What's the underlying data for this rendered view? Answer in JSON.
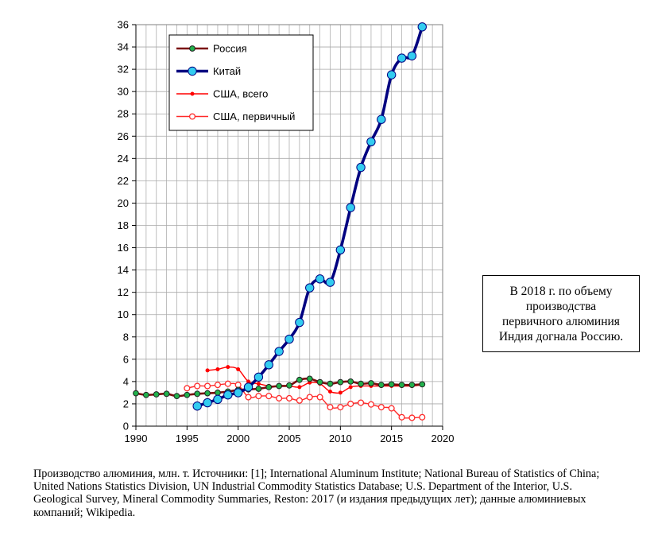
{
  "chart_data": {
    "type": "line",
    "title": "",
    "xlabel": "",
    "ylabel": "",
    "xlim": [
      1990,
      2020
    ],
    "ylim": [
      0,
      36
    ],
    "x_ticks": [
      1990,
      1995,
      2000,
      2005,
      2010,
      2015,
      2020
    ],
    "y_ticks": [
      0,
      2,
      4,
      6,
      8,
      10,
      12,
      14,
      16,
      18,
      20,
      22,
      24,
      26,
      28,
      30,
      32,
      34,
      36
    ],
    "grid": true,
    "legend_position": "top-left",
    "series": [
      {
        "name": "Россия",
        "color": "#7a0c0c",
        "marker_color": "#22b14c",
        "style": "thick",
        "x": [
          1990,
          1991,
          1992,
          1993,
          1994,
          1995,
          1996,
          1997,
          1998,
          1999,
          2000,
          2001,
          2002,
          2003,
          2004,
          2005,
          2006,
          2007,
          2008,
          2009,
          2010,
          2011,
          2012,
          2013,
          2014,
          2015,
          2016,
          2017,
          2018
        ],
        "values": [
          2.95,
          2.8,
          2.85,
          2.9,
          2.7,
          2.8,
          2.9,
          2.95,
          3.0,
          3.1,
          3.25,
          3.3,
          3.35,
          3.5,
          3.6,
          3.65,
          4.15,
          4.25,
          3.95,
          3.8,
          3.95,
          4.0,
          3.8,
          3.85,
          3.7,
          3.75,
          3.7,
          3.7,
          3.75
        ]
      },
      {
        "name": "Китай",
        "color": "#000080",
        "marker_color": "#33ccf0",
        "style": "thick",
        "x": [
          1996,
          1997,
          1998,
          1999,
          2000,
          2001,
          2002,
          2003,
          2004,
          2005,
          2006,
          2007,
          2008,
          2009,
          2010,
          2011,
          2012,
          2013,
          2014,
          2015,
          2016,
          2017,
          2018
        ],
        "values": [
          1.8,
          2.1,
          2.4,
          2.8,
          3.0,
          3.5,
          4.4,
          5.5,
          6.7,
          7.8,
          9.3,
          12.4,
          13.2,
          12.9,
          15.8,
          19.6,
          23.2,
          25.5,
          27.5,
          31.5,
          33.0,
          33.2,
          35.8
        ]
      },
      {
        "name": "США, всего",
        "color": "#ff0000",
        "marker_color": "#ff0000",
        "style": "thin-small",
        "x": [
          1997,
          1998,
          1999,
          2000,
          2001,
          2002,
          2003,
          2004,
          2005,
          2006,
          2007,
          2008,
          2009,
          2010,
          2011,
          2012,
          2013,
          2014,
          2015,
          2016,
          2017,
          2018
        ],
        "values": [
          5.0,
          5.1,
          5.3,
          5.1,
          4.0,
          3.8,
          3.6,
          3.6,
          3.6,
          3.5,
          3.9,
          3.8,
          3.1,
          3.0,
          3.5,
          3.6,
          3.6,
          3.6,
          3.6,
          3.6,
          3.6,
          3.7
        ]
      },
      {
        "name": "США, первичный",
        "color": "#ff2a2a",
        "marker_color": "#ffffff",
        "style": "thin-open",
        "x": [
          1995,
          1996,
          1997,
          1998,
          1999,
          2000,
          2001,
          2002,
          2003,
          2004,
          2005,
          2006,
          2007,
          2008,
          2009,
          2010,
          2011,
          2012,
          2013,
          2014,
          2015,
          2016,
          2017,
          2018
        ],
        "values": [
          3.4,
          3.6,
          3.6,
          3.7,
          3.8,
          3.7,
          2.6,
          2.7,
          2.7,
          2.5,
          2.5,
          2.3,
          2.6,
          2.6,
          1.7,
          1.7,
          2.0,
          2.1,
          1.95,
          1.7,
          1.6,
          0.8,
          0.75,
          0.8
        ]
      }
    ]
  },
  "annotation": {
    "lines": "В 2018 г. по объему\nпроизводства\nпервичного алюминия\nИндия догнала Россию."
  },
  "caption": {
    "text": "Производство алюминия, млн. т. Источники: [1]; International Aluminum Institute;  National Bureau of Statistics of China; United Nations Statistics Division, UN Industrial Commodity Statistics Database; U.S. Department of the Interior, U.S. Geological Survey, Mineral Commodity Summaries, Reston: 2017 (и издания предыдущих лет); данные алюминиевых компаний; Wikipedia."
  }
}
